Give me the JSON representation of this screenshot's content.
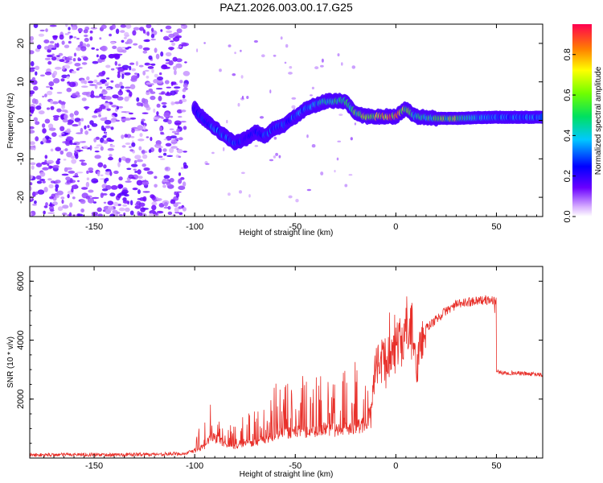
{
  "chart_data": [
    {
      "type": "heatmap",
      "title": "PAZ1.2026.003.00.17.G25",
      "xlabel": "Height of straight line (km)",
      "ylabel": "Frequency (Hz)",
      "xlim": [
        -182,
        73
      ],
      "ylim": [
        -25,
        25
      ],
      "xticks": [
        -150,
        -100,
        -50,
        0,
        50
      ],
      "yticks": [
        -20,
        -10,
        0,
        10,
        20
      ],
      "colorbar": {
        "label": "Normalized spectral amplitude",
        "range": [
          0,
          0.95
        ],
        "ticks": [
          "0.0",
          "0.2",
          "0.4",
          "0.6",
          "0.8"
        ]
      },
      "ridge": {
        "height_km": [
          -100,
          -95,
          -90,
          -85,
          -80,
          -75,
          -70,
          -65,
          -60,
          -55,
          -50,
          -45,
          -40,
          -35,
          -30,
          -25,
          -20,
          -15,
          -10,
          -5,
          0,
          5,
          10,
          20,
          30,
          40,
          50,
          60,
          73
        ],
        "frequency_hz": [
          3,
          0,
          -2,
          -4,
          -6,
          -5,
          -3,
          -4,
          -2,
          -1,
          1,
          3,
          4,
          5,
          5,
          5,
          2,
          1,
          1,
          1,
          1,
          3,
          1,
          0.5,
          0.5,
          0.7,
          0.8,
          0.8,
          0.8
        ],
        "amplitude": [
          0.2,
          0.3,
          0.35,
          0.3,
          0.3,
          0.25,
          0.25,
          0.3,
          0.3,
          0.3,
          0.35,
          0.35,
          0.4,
          0.45,
          0.5,
          0.5,
          0.55,
          0.7,
          0.75,
          0.8,
          0.85,
          0.6,
          0.45,
          0.55,
          0.65,
          0.4,
          0.35,
          0.35,
          0.35
        ]
      }
    },
    {
      "type": "line",
      "xlabel": "Height of straight line (km)",
      "ylabel": "SNR (10 * v/v)",
      "xlim": [
        -182,
        73
      ],
      "ylim": [
        0,
        6500
      ],
      "xticks": [
        -150,
        -100,
        -50,
        0,
        50
      ],
      "yticks": [
        2000,
        4000,
        6000
      ],
      "series": [
        {
          "name": "SNR",
          "color": "#e8302a",
          "x": [
            -182,
            -160,
            -140,
            -120,
            -105,
            -100,
            -95,
            -92,
            -88,
            -85,
            -80,
            -75,
            -70,
            -65,
            -60,
            -55,
            -50,
            -45,
            -40,
            -35,
            -30,
            -25,
            -20,
            -15,
            -13,
            -10,
            -5,
            0,
            5,
            8,
            10,
            13,
            15,
            20,
            25,
            30,
            40,
            49,
            50,
            52,
            60,
            73
          ],
          "y": [
            100,
            120,
            110,
            130,
            150,
            250,
            400,
            700,
            650,
            450,
            400,
            450,
            550,
            600,
            800,
            850,
            900,
            900,
            900,
            1000,
            950,
            1000,
            1100,
            1100,
            1500,
            3100,
            3400,
            3700,
            4200,
            4300,
            2900,
            4100,
            4400,
            4700,
            5000,
            5200,
            5350,
            5350,
            2950,
            2900,
            2880,
            2820
          ]
        }
      ]
    }
  ]
}
